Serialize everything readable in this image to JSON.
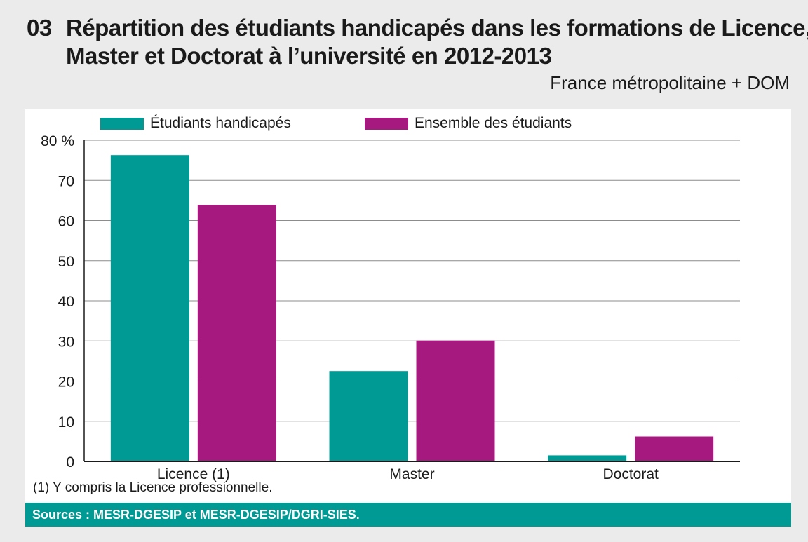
{
  "header": {
    "number": "03",
    "title_line1": "Répartition des étudiants handicapés dans les formations de Licence,",
    "title_line2": "Master et Doctorat à l’université en 2012-2013",
    "subtitle": "France métropolitaine + DOM"
  },
  "footer": {
    "note": "(1) Y compris la Licence professionnelle.",
    "sources": "Sources : MESR-DGESIP et MESR-DGESIP/DGRI-SIES."
  },
  "chart_data": {
    "type": "bar",
    "categories": [
      "Licence (1)",
      "Master",
      "Doctorat"
    ],
    "series": [
      {
        "name": "Étudiants handicapés",
        "values": [
          76.3,
          22.5,
          1.5
        ],
        "color": "#009a94"
      },
      {
        "name": "Ensemble des étudiants",
        "values": [
          63.9,
          30.1,
          6.2
        ],
        "color": "#a6197e"
      }
    ],
    "y_tick_labels": [
      "0",
      "10",
      "20",
      "30",
      "40",
      "50",
      "60",
      "70",
      "80 %"
    ],
    "ylim": [
      0,
      80
    ],
    "grid": true,
    "legend_position": "top"
  }
}
